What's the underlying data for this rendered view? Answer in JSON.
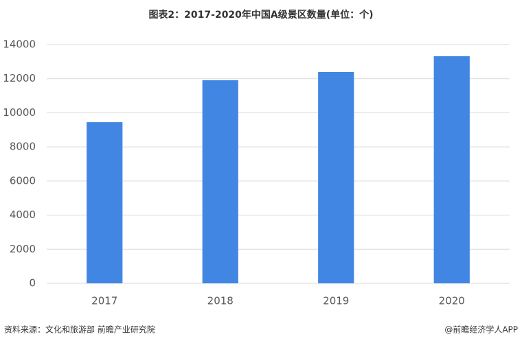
{
  "chart_data": {
    "type": "bar",
    "title": "图表2：2017-2020年中国A级景区数量(单位：个)",
    "categories": [
      "2017",
      "2018",
      "2019",
      "2020"
    ],
    "values": [
      9450,
      11910,
      12390,
      13320
    ],
    "color": "#4186e2",
    "ylim": [
      0,
      14000
    ],
    "yticks": [
      0,
      2000,
      4000,
      6000,
      8000,
      10000,
      12000,
      14000
    ],
    "grid": true,
    "source": "资料来源：文化和旅游部 前瞻产业研究院",
    "credit": "@前瞻经济学人APP"
  }
}
